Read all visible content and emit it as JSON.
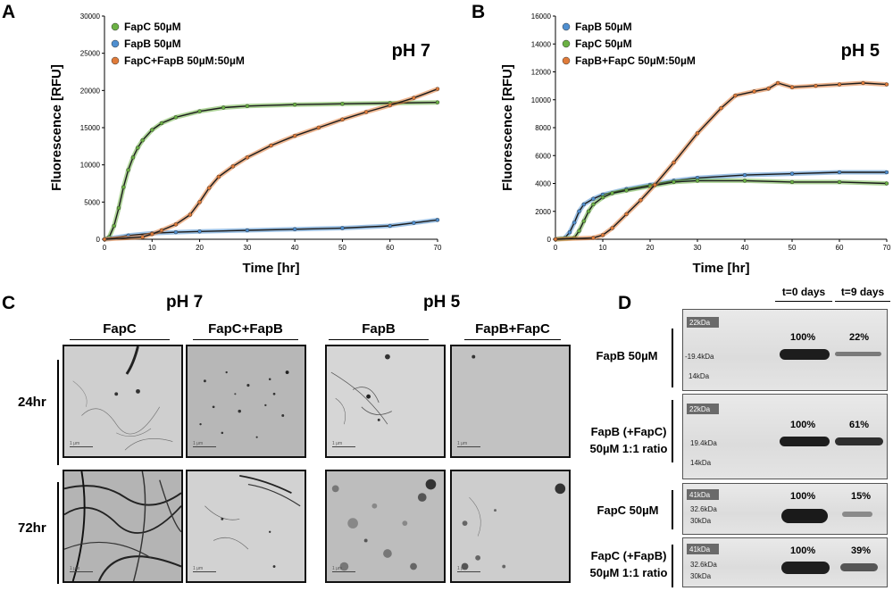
{
  "panels": {
    "a": "A",
    "b": "B",
    "c": "C",
    "d": "D"
  },
  "chart_data": [
    {
      "type": "line",
      "title": "pH 7",
      "xlabel": "Time [hr]",
      "ylabel": "Fluorescence [RFU]",
      "xlim": [
        0,
        70
      ],
      "ylim": [
        0,
        30000
      ],
      "x_ticks": [
        "0",
        "10",
        "20",
        "30",
        "40",
        "50",
        "60",
        "70"
      ],
      "y_ticks": [
        "0",
        "5000",
        "10000",
        "15000",
        "20000",
        "25000",
        "30000"
      ],
      "legend": [
        {
          "name": "FapC 50µM",
          "color": "#6bb144"
        },
        {
          "name": "FapB 50µM",
          "color": "#4f8fd0"
        },
        {
          "name": "FapC+FapB 50µM:50µM",
          "color": "#e07b39"
        }
      ],
      "series": [
        {
          "name": "FapC 50µM",
          "color": "#6bb144",
          "x": [
            0,
            1,
            2,
            3,
            4,
            5,
            6,
            7,
            8,
            10,
            12,
            15,
            20,
            25,
            30,
            40,
            50,
            60,
            70
          ],
          "y": [
            0,
            300,
            1800,
            4200,
            7000,
            9300,
            11000,
            12300,
            13300,
            14700,
            15600,
            16400,
            17200,
            17700,
            17900,
            18100,
            18200,
            18300,
            18400
          ]
        },
        {
          "name": "FapB 50µM",
          "color": "#4f8fd0",
          "x": [
            0,
            5,
            10,
            15,
            20,
            30,
            40,
            50,
            60,
            65,
            70
          ],
          "y": [
            0,
            500,
            800,
            950,
            1050,
            1200,
            1350,
            1500,
            1800,
            2200,
            2600
          ]
        },
        {
          "name": "FapC+FapB 50µM:50µM",
          "color": "#e07b39",
          "x": [
            0,
            8,
            10,
            12,
            15,
            18,
            20,
            22,
            24,
            27,
            30,
            35,
            40,
            45,
            50,
            55,
            60,
            65,
            70
          ],
          "y": [
            0,
            300,
            700,
            1200,
            2000,
            3300,
            5000,
            6900,
            8400,
            9800,
            11000,
            12600,
            13900,
            15000,
            16100,
            17100,
            18000,
            19000,
            20200
          ]
        }
      ]
    },
    {
      "type": "line",
      "title": "pH 5",
      "xlabel": "Time [hr]",
      "ylabel": "Fluorescence [RFU]",
      "xlim": [
        0,
        70
      ],
      "ylim": [
        0,
        16000
      ],
      "x_ticks": [
        "0",
        "10",
        "20",
        "30",
        "40",
        "50",
        "60",
        "70"
      ],
      "y_ticks": [
        "0",
        "2000",
        "4000",
        "6000",
        "8000",
        "10000",
        "12000",
        "14000",
        "16000"
      ],
      "legend": [
        {
          "name": "FapB 50µM",
          "color": "#4f8fd0"
        },
        {
          "name": "FapC 50µM",
          "color": "#6bb144"
        },
        {
          "name": "FapB+FapC 50µM:50µM",
          "color": "#e07b39"
        }
      ],
      "series": [
        {
          "name": "FapB 50µM",
          "color": "#4f8fd0",
          "x": [
            0,
            2,
            3,
            4,
            5,
            6,
            8,
            10,
            15,
            20,
            25,
            30,
            40,
            50,
            60,
            70
          ],
          "y": [
            0,
            100,
            500,
            1200,
            2000,
            2500,
            2900,
            3200,
            3600,
            3900,
            4200,
            4400,
            4600,
            4700,
            4800,
            4800
          ]
        },
        {
          "name": "FapC 50µM",
          "color": "#6bb144",
          "x": [
            0,
            4,
            5,
            6,
            7,
            8,
            10,
            12,
            15,
            20,
            25,
            30,
            40,
            50,
            60,
            70
          ],
          "y": [
            0,
            100,
            600,
            1300,
            2000,
            2500,
            3000,
            3300,
            3500,
            3800,
            4100,
            4200,
            4200,
            4100,
            4100,
            4000
          ]
        },
        {
          "name": "FapB+FapC 50µM:50µM",
          "color": "#e07b39",
          "x": [
            0,
            8,
            10,
            12,
            15,
            18,
            21,
            25,
            30,
            35,
            38,
            42,
            45,
            47,
            50,
            55,
            60,
            65,
            70
          ],
          "y": [
            0,
            100,
            300,
            800,
            1800,
            2800,
            3900,
            5500,
            7600,
            9400,
            10300,
            10600,
            10800,
            11200,
            10900,
            11000,
            11100,
            11200,
            11100
          ]
        }
      ]
    }
  ],
  "panel_c": {
    "ph7": "pH 7",
    "ph5": "pH 5",
    "columns": [
      "FapC",
      "FapC+FapB",
      "FapB",
      "FapB+FapC"
    ],
    "rows": [
      "24hr",
      "72hr"
    ],
    "scale": "1 μm"
  },
  "panel_d": {
    "time_headers": [
      "t=0 days",
      "t=9 days"
    ],
    "blots": [
      {
        "label_lines": [
          "FapB 50µM"
        ],
        "markers": [
          "22kDa",
          "-19.4kDa",
          "14kDa"
        ],
        "pct0": "100%",
        "pct9": "22%"
      },
      {
        "label_lines": [
          "FapB (+FapC)",
          "50µM 1:1 ratio"
        ],
        "markers": [
          "22kDa",
          "19.4kDa",
          "14kDa"
        ],
        "pct0": "100%",
        "pct9": "61%"
      },
      {
        "label_lines": [
          "FapC 50µM"
        ],
        "markers": [
          "41kDa",
          "32.6kDa",
          "30kDa"
        ],
        "pct0": "100%",
        "pct9": "15%"
      },
      {
        "label_lines": [
          "FapC (+FapB)",
          "50µM 1:1 ratio"
        ],
        "markers": [
          "41kDa",
          "32.6kDa",
          "30kDa"
        ],
        "pct0": "100%",
        "pct9": "39%"
      }
    ]
  }
}
